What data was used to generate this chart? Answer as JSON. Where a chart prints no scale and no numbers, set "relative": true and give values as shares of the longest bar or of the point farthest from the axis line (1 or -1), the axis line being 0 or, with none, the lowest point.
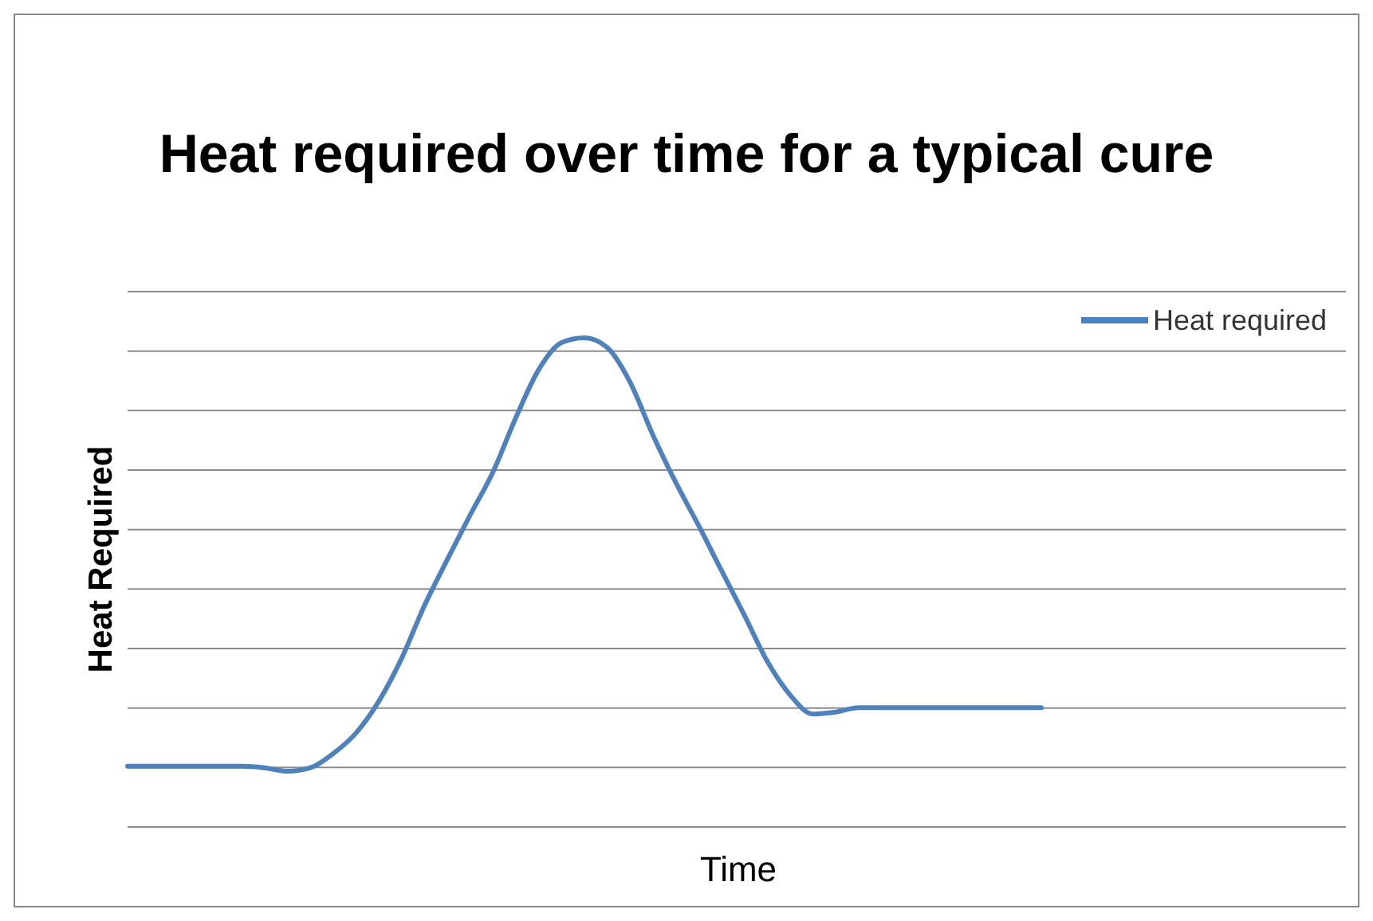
{
  "chart_data": {
    "type": "line",
    "title": "Heat required over time for a typical cure",
    "xlabel": "Time",
    "ylabel": "Heat Required",
    "relative": true,
    "grid": true,
    "legend": "top right",
    "marker": "none",
    "line_style": "solid",
    "categories": [
      null,
      null,
      null,
      null,
      null,
      null,
      null,
      null,
      null,
      null,
      null,
      null,
      null,
      null,
      null,
      null,
      null,
      null,
      null,
      null,
      null,
      null,
      null,
      null,
      null,
      null,
      null,
      null,
      null,
      null,
      null,
      null,
      null,
      null,
      null,
      null,
      null,
      null,
      null,
      null,
      null
    ],
    "series": [
      {
        "name": "Heat required",
        "color": "#4f81bd",
        "values": [
          0.124,
          0.124,
          0.124,
          0.124,
          0.124,
          0.124,
          0.121,
          0.114,
          0.121,
          0.15,
          0.192,
          0.257,
          0.345,
          0.453,
          0.547,
          0.638,
          0.726,
          0.837,
          0.935,
          0.99,
          1,
          0.98,
          0.909,
          0.801,
          0.704,
          0.616,
          0.524,
          0.433,
          0.339,
          0.27,
          0.231,
          0.235,
          0.244,
          0.244,
          0.244,
          0.244,
          0.244,
          0.244,
          0.244,
          0.244,
          0.244
        ]
      }
    ]
  }
}
